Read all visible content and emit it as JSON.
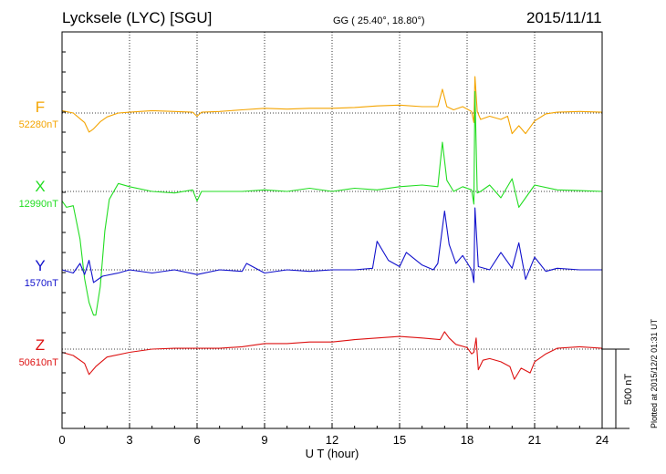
{
  "header": {
    "station": "Lycksele (LYC)  [SGU]",
    "coords": "GG ( 25.40°,  18.80°)",
    "date": "2015/11/11"
  },
  "side_note": "Plotted at 2015/12/2 01:31  UT",
  "scale_label": "500 nT",
  "chart_data": {
    "type": "line",
    "xlabel": "U T (hour)",
    "xlim": [
      0,
      24
    ],
    "xticks": [
      0,
      3,
      6,
      9,
      12,
      15,
      18,
      21,
      24
    ],
    "scale_bar_nT": 500,
    "series": [
      {
        "name": "F",
        "baseline_label": "52280nT",
        "color": "#f4a400",
        "x": [
          0,
          0.5,
          1.0,
          1.2,
          1.4,
          1.7,
          2.0,
          2.5,
          3.0,
          4.0,
          5.0,
          5.8,
          6.0,
          6.2,
          7.0,
          8.0,
          9.0,
          10.0,
          11.0,
          12.0,
          13.0,
          14.0,
          15.0,
          16.0,
          16.7,
          16.9,
          17.1,
          17.4,
          17.8,
          18.2,
          18.3,
          18.35,
          18.45,
          18.6,
          19.0,
          19.5,
          19.8,
          20.0,
          20.3,
          20.6,
          21.0,
          21.5,
          22.0,
          23.0,
          24.0
        ],
        "y": [
          15,
          0,
          -60,
          -120,
          -100,
          -55,
          -25,
          0,
          5,
          15,
          10,
          5,
          -20,
          5,
          10,
          20,
          30,
          25,
          30,
          30,
          35,
          45,
          50,
          40,
          40,
          150,
          40,
          20,
          40,
          10,
          -60,
          230,
          10,
          -40,
          -20,
          -40,
          -20,
          -130,
          -80,
          -130,
          -50,
          -5,
          5,
          10,
          5
        ]
      },
      {
        "name": "X",
        "baseline_label": "12990nT",
        "color": "#22dd22",
        "x": [
          0,
          0.2,
          0.5,
          0.8,
          1.0,
          1.2,
          1.4,
          1.5,
          1.7,
          1.9,
          2.1,
          2.5,
          3.0,
          4.0,
          5.0,
          5.8,
          6.0,
          6.2,
          7.0,
          8.0,
          9.0,
          10.0,
          11.0,
          12.0,
          13.0,
          14.0,
          15.0,
          16.0,
          16.7,
          16.9,
          17.1,
          17.4,
          17.8,
          18.2,
          18.3,
          18.35,
          18.45,
          18.6,
          19.0,
          19.5,
          20.0,
          20.3,
          20.6,
          21.0,
          22.0,
          23.0,
          24.0
        ],
        "y": [
          -60,
          -100,
          -90,
          -300,
          -550,
          -700,
          -780,
          -780,
          -600,
          -250,
          -50,
          50,
          30,
          0,
          -10,
          10,
          -60,
          0,
          0,
          0,
          10,
          0,
          20,
          0,
          20,
          10,
          30,
          40,
          30,
          310,
          70,
          0,
          30,
          10,
          -80,
          630,
          -10,
          0,
          40,
          -40,
          80,
          -100,
          -40,
          40,
          10,
          5,
          0
        ]
      },
      {
        "name": "Y",
        "baseline_label": "1570nT",
        "color": "#1111cc",
        "x": [
          0,
          0.5,
          0.8,
          1.0,
          1.2,
          1.4,
          1.8,
          2.5,
          3.0,
          4.0,
          5.0,
          6.0,
          7.0,
          8.0,
          8.2,
          9.0,
          10.0,
          11.0,
          12.0,
          13.0,
          13.8,
          14.0,
          14.5,
          15.0,
          15.3,
          16.0,
          16.5,
          16.7,
          17.0,
          17.2,
          17.5,
          17.8,
          18.2,
          18.3,
          18.35,
          18.5,
          19.0,
          19.5,
          20.0,
          20.3,
          20.6,
          21.0,
          21.5,
          22.0,
          23.0,
          24.0
        ],
        "y": [
          0,
          -20,
          40,
          -30,
          60,
          -80,
          -40,
          -20,
          0,
          -20,
          0,
          -30,
          0,
          -10,
          40,
          -20,
          0,
          -10,
          0,
          0,
          10,
          180,
          60,
          20,
          110,
          30,
          0,
          40,
          370,
          160,
          40,
          90,
          0,
          -80,
          390,
          20,
          0,
          110,
          10,
          170,
          -60,
          80,
          -10,
          10,
          0,
          0
        ]
      },
      {
        "name": "Z",
        "baseline_label": "50610nT",
        "color": "#dd1111",
        "x": [
          0,
          0.5,
          1.0,
          1.2,
          1.5,
          2.0,
          3.0,
          4.0,
          5.0,
          6.0,
          7.0,
          8.0,
          9.0,
          10.0,
          11.0,
          12.0,
          13.0,
          14.0,
          15.0,
          16.0,
          16.8,
          17.0,
          17.2,
          17.5,
          18.0,
          18.2,
          18.3,
          18.4,
          18.5,
          18.7,
          19.0,
          19.5,
          19.9,
          20.1,
          20.4,
          20.8,
          21.0,
          21.5,
          22.0,
          23.0,
          24.0
        ],
        "y": [
          -20,
          -40,
          -90,
          -160,
          -110,
          -50,
          -20,
          0,
          5,
          5,
          5,
          15,
          35,
          35,
          45,
          45,
          60,
          70,
          80,
          70,
          60,
          110,
          70,
          30,
          10,
          -30,
          -20,
          70,
          -130,
          -70,
          -60,
          -80,
          -110,
          -190,
          -120,
          -150,
          -80,
          -30,
          5,
          15,
          5
        ]
      }
    ]
  }
}
